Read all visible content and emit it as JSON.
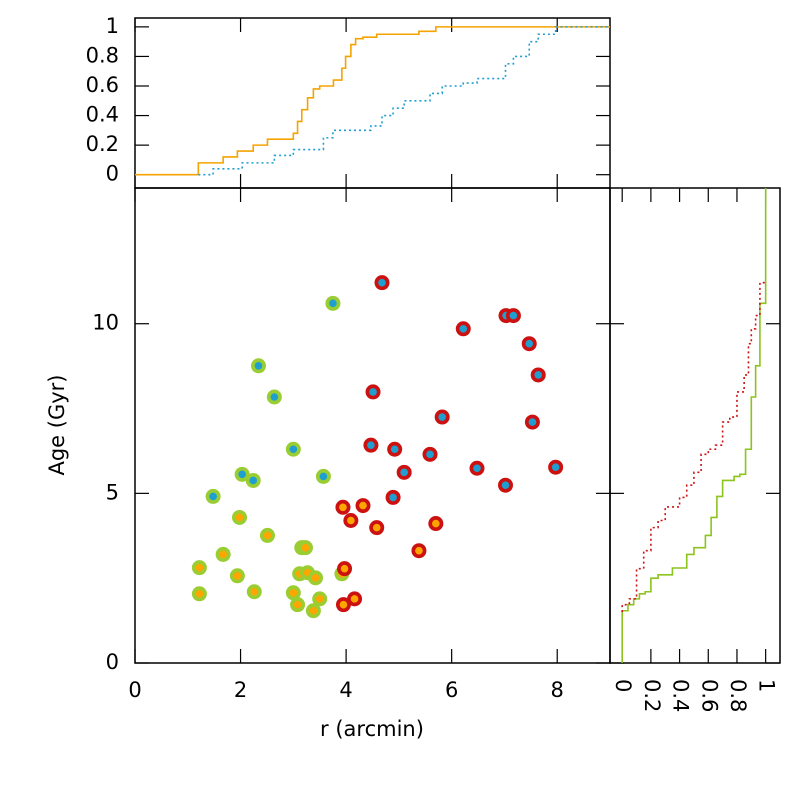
{
  "chart_data": [
    {
      "type": "cdf",
      "orientation": "horizontal",
      "xlim": [
        0,
        9
      ],
      "ylim": [
        -0.09,
        1.06
      ],
      "xtick_marks": [
        0,
        2,
        4,
        6,
        8
      ],
      "yticks": [
        0,
        0.2,
        0.4,
        0.6,
        0.8,
        1
      ],
      "series": [
        {
          "color": "#f5a300",
          "linestyle": "solid",
          "x": [
            0,
            1.2,
            1.67,
            1.94,
            2.24,
            2.51,
            3.0,
            3.08,
            3.16,
            3.27,
            3.38,
            3.5,
            3.76,
            3.92,
            3.99,
            4.09,
            4.18,
            4.32,
            4.58,
            5.38,
            5.7,
            9
          ],
          "y": [
            0,
            0.08,
            0.12,
            0.16,
            0.2,
            0.24,
            0.28,
            0.36,
            0.44,
            0.52,
            0.58,
            0.6,
            0.64,
            0.72,
            0.8,
            0.88,
            0.92,
            0.93,
            0.95,
            0.97,
            1,
            1
          ]
        },
        {
          "color": "#1e9fd0",
          "linestyle": "dotted",
          "x": [
            1.2,
            1.48,
            2.03,
            2.64,
            3.0,
            3.57,
            3.75,
            4.47,
            4.68,
            4.89,
            5.1,
            5.59,
            5.82,
            6.22,
            6.48,
            7.02,
            7.17,
            7.47,
            7.64,
            7.97,
            9
          ],
          "y": [
            0,
            0.04,
            0.08,
            0.13,
            0.17,
            0.25,
            0.3,
            0.33,
            0.4,
            0.45,
            0.5,
            0.55,
            0.6,
            0.62,
            0.65,
            0.75,
            0.8,
            0.9,
            0.95,
            1,
            1
          ]
        }
      ]
    },
    {
      "type": "scatter",
      "xlabel": "r (arcmin)",
      "ylabel": "Age (Gyr)",
      "xlim": [
        0,
        9
      ],
      "ylim": [
        0,
        14
      ],
      "xticks": [
        0,
        2,
        4,
        6,
        8
      ],
      "yticks": [
        0,
        5,
        10
      ],
      "series": [
        {
          "color": "#1e9fd0",
          "edge_color": "#9acd32",
          "x": [
            3.75,
            2.34,
            2.64,
            3.0,
            2.03,
            2.24,
            3.57,
            1.48
          ],
          "y": [
            10.6,
            8.76,
            7.84,
            6.3,
            5.56,
            5.38,
            5.5,
            4.91
          ]
        },
        {
          "color": "#ffa500",
          "edge_color": "#9acd32",
          "x": [
            1.98,
            2.51,
            3.16,
            3.23,
            1.67,
            1.22,
            1.94,
            3.12,
            3.27,
            3.42,
            3.92,
            1.22,
            2.26,
            3.0,
            3.5,
            3.08,
            3.38
          ],
          "y": [
            4.29,
            3.76,
            3.4,
            3.4,
            3.2,
            2.81,
            2.57,
            2.63,
            2.66,
            2.51,
            2.63,
            2.04,
            2.1,
            2.07,
            1.89,
            1.72,
            1.54
          ]
        },
        {
          "color": "#1e9fd0",
          "edge_color": "#cc1111",
          "x": [
            4.68,
            7.03,
            7.17,
            6.22,
            7.47,
            7.64,
            4.51,
            5.82,
            7.53,
            4.47,
            4.92,
            5.59,
            5.1,
            6.48,
            7.97,
            7.02,
            4.89
          ],
          "y": [
            11.21,
            10.24,
            10.24,
            9.85,
            9.41,
            8.49,
            7.99,
            7.25,
            7.1,
            6.42,
            6.3,
            6.15,
            5.62,
            5.74,
            5.77,
            5.24,
            4.88
          ]
        },
        {
          "color": "#ffa500",
          "edge_color": "#cc1111",
          "x": [
            3.94,
            4.32,
            4.09,
            4.58,
            5.7,
            5.38,
            3.97,
            4.16,
            3.95
          ],
          "y": [
            4.59,
            4.64,
            4.2,
            3.99,
            4.11,
            3.31,
            2.78,
            1.89,
            1.72
          ]
        }
      ]
    },
    {
      "type": "cdf",
      "orientation": "vertical",
      "xlim": [
        -0.085,
        1.1
      ],
      "ylim": [
        0,
        14
      ],
      "xticks": [
        0,
        0.2,
        0.4,
        0.6,
        0.8,
        1
      ],
      "xtick_rotation": 90,
      "ytick_marks": [
        0,
        5,
        10
      ],
      "series": [
        {
          "color": "#8cc41e",
          "linestyle": "solid",
          "x": [
            0,
            0.04,
            0.08,
            0.12,
            0.16,
            0.2,
            0.25,
            0.35,
            0.45,
            0.5,
            0.58,
            0.62,
            0.66,
            0.7,
            0.78,
            0.82,
            0.86,
            0.9,
            0.93,
            0.96,
            1,
            1
          ],
          "y": [
            0,
            1.54,
            1.72,
            1.89,
            2.04,
            2.1,
            2.5,
            2.6,
            2.8,
            3.2,
            3.4,
            3.76,
            4.29,
            4.91,
            5.38,
            5.5,
            5.56,
            6.3,
            7.84,
            8.76,
            10.6,
            14
          ]
        },
        {
          "color": "#cc1111",
          "linestyle": "dotted",
          "x": [
            0,
            0.05,
            0.1,
            0.15,
            0.2,
            0.25,
            0.3,
            0.4,
            0.45,
            0.5,
            0.55,
            0.6,
            0.65,
            0.7,
            0.75,
            0.8,
            0.85,
            0.88,
            0.9,
            0.93,
            0.96,
            1
          ],
          "y": [
            1.5,
            1.72,
            1.89,
            2.78,
            3.31,
            3.99,
            4.2,
            4.6,
            4.88,
            5.24,
            5.62,
            6.15,
            6.3,
            6.42,
            7.1,
            7.25,
            7.99,
            8.49,
            9.41,
            9.85,
            10.24,
            11.21
          ]
        }
      ]
    }
  ]
}
